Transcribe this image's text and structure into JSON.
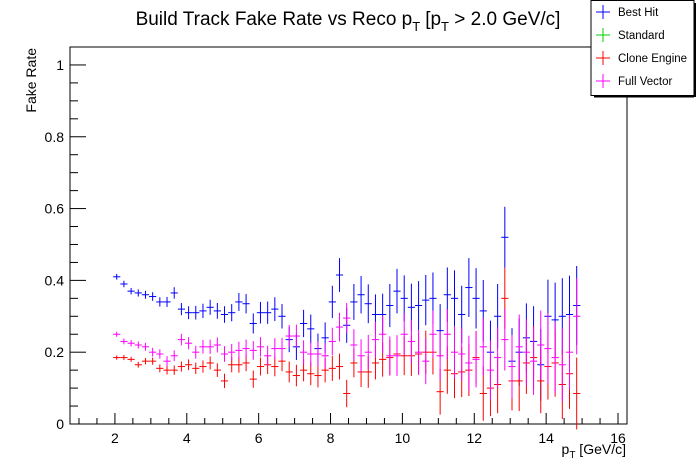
{
  "chart_data": {
    "type": "scatter",
    "title": "Build Track Fake Rate vs Reco p",
    "title_sub": "T",
    "title_bracket_open": "[p",
    "title_bracket_sub": "T",
    "title_tail": " > 2.0 GeV/c]",
    "xlabel": "p",
    "xlabel_sub": "T",
    "xlabel_tail": " [GeV/c]",
    "ylabel": "Fake Rate",
    "xlim": [
      0.75,
      16.25
    ],
    "ylim": [
      0,
      1.05
    ],
    "xticks": [
      2,
      4,
      6,
      8,
      10,
      12,
      14,
      16
    ],
    "xtick_labels": [
      "2",
      "4",
      "6",
      "8",
      "10",
      "12",
      "14",
      "16"
    ],
    "yticks": [
      0,
      0.2,
      0.4,
      0.6,
      0.8,
      1
    ],
    "ytick_labels": [
      "0",
      "0.2",
      "0.4",
      "0.6",
      "0.8",
      "1"
    ],
    "legend_position": "top-right",
    "x": [
      2.05,
      2.25,
      2.45,
      2.65,
      2.85,
      3.05,
      3.25,
      3.45,
      3.65,
      3.85,
      4.05,
      4.25,
      4.45,
      4.65,
      4.85,
      5.05,
      5.25,
      5.45,
      5.65,
      5.85,
      6.05,
      6.25,
      6.45,
      6.65,
      6.85,
      7.05,
      7.25,
      7.45,
      7.65,
      7.85,
      8.05,
      8.25,
      8.45,
      8.65,
      8.85,
      9.05,
      9.25,
      9.45,
      9.65,
      9.85,
      10.05,
      10.25,
      10.45,
      10.65,
      10.85,
      11.05,
      11.25,
      11.45,
      11.65,
      11.85,
      12.05,
      12.25,
      12.45,
      12.65,
      12.85,
      13.05,
      13.25,
      13.45,
      13.65,
      13.85,
      14.05,
      14.25,
      14.45,
      14.65,
      14.85
    ],
    "series": [
      {
        "name": "Best Hit",
        "color": "#0000ff",
        "values": [
          0.41,
          0.39,
          0.37,
          0.365,
          0.36,
          0.355,
          0.34,
          0.34,
          0.365,
          0.32,
          0.31,
          0.31,
          0.315,
          0.325,
          0.315,
          0.305,
          0.31,
          0.34,
          0.335,
          0.28,
          0.31,
          0.31,
          0.32,
          0.3,
          0.235,
          0.215,
          0.28,
          0.265,
          0.21,
          0.24,
          0.34,
          0.415,
          0.275,
          0.34,
          0.36,
          0.335,
          0.305,
          0.305,
          0.33,
          0.37,
          0.35,
          0.325,
          0.33,
          0.345,
          0.35,
          0.26,
          0.36,
          0.35,
          0.305,
          0.38,
          0.35,
          0.315,
          0.2,
          0.3,
          0.52,
          0.175,
          0.2,
          0.24,
          0.23,
          0.165,
          0.3,
          0.29,
          0.3,
          0.305,
          0.33
        ],
        "errors": [
          0.008,
          0.009,
          0.009,
          0.01,
          0.011,
          0.012,
          0.013,
          0.014,
          0.016,
          0.017,
          0.018,
          0.019,
          0.02,
          0.021,
          0.022,
          0.023,
          0.024,
          0.025,
          0.027,
          0.028,
          0.03,
          0.031,
          0.033,
          0.034,
          0.035,
          0.037,
          0.038,
          0.04,
          0.042,
          0.043,
          0.045,
          0.047,
          0.049,
          0.05,
          0.052,
          0.054,
          0.056,
          0.058,
          0.06,
          0.062,
          0.064,
          0.066,
          0.068,
          0.07,
          0.072,
          0.074,
          0.076,
          0.078,
          0.08,
          0.082,
          0.084,
          0.086,
          0.088,
          0.09,
          0.085,
          0.092,
          0.094,
          0.096,
          0.098,
          0.1,
          0.102,
          0.104,
          0.106,
          0.108,
          0.11
        ]
      },
      {
        "name": "Standard",
        "color": "#00cc00",
        "values": [],
        "errors": []
      },
      {
        "name": "Clone Engine",
        "color": "#ff0000",
        "values": [
          0.185,
          0.185,
          0.18,
          0.165,
          0.175,
          0.175,
          0.155,
          0.15,
          0.15,
          0.16,
          0.165,
          0.155,
          0.16,
          0.17,
          0.15,
          0.12,
          0.165,
          0.165,
          0.17,
          0.125,
          0.16,
          0.165,
          0.16,
          0.175,
          0.145,
          0.135,
          0.15,
          0.14,
          0.135,
          0.15,
          0.155,
          0.16,
          0.085,
          0.17,
          0.145,
          0.145,
          0.17,
          0.18,
          0.185,
          0.195,
          0.19,
          0.19,
          0.195,
          0.2,
          0.2,
          0.09,
          0.15,
          0.14,
          0.145,
          0.15,
          0.185,
          0.085,
          0.1,
          0.11,
          0.35,
          0.12,
          0.12,
          0.17,
          0.185,
          0.12,
          0.16,
          0.17,
          0.11,
          0.14,
          0.085
        ],
        "errors": [
          0.006,
          0.007,
          0.007,
          0.008,
          0.009,
          0.01,
          0.011,
          0.012,
          0.013,
          0.014,
          0.015,
          0.016,
          0.017,
          0.018,
          0.019,
          0.02,
          0.021,
          0.022,
          0.023,
          0.024,
          0.025,
          0.026,
          0.027,
          0.028,
          0.029,
          0.03,
          0.031,
          0.032,
          0.033,
          0.034,
          0.035,
          0.036,
          0.038,
          0.04,
          0.042,
          0.044,
          0.046,
          0.048,
          0.05,
          0.052,
          0.054,
          0.056,
          0.058,
          0.06,
          0.062,
          0.064,
          0.066,
          0.068,
          0.07,
          0.072,
          0.074,
          0.076,
          0.078,
          0.08,
          0.085,
          0.082,
          0.084,
          0.086,
          0.088,
          0.09,
          0.092,
          0.094,
          0.096,
          0.098,
          0.1
        ]
      },
      {
        "name": "Full Vector",
        "color": "#ff00ff",
        "values": [
          0.25,
          0.23,
          0.225,
          0.22,
          0.215,
          0.2,
          0.195,
          0.175,
          0.19,
          0.235,
          0.225,
          0.2,
          0.215,
          0.215,
          0.22,
          0.195,
          0.2,
          0.205,
          0.21,
          0.205,
          0.215,
          0.19,
          0.21,
          0.21,
          0.245,
          0.245,
          0.2,
          0.195,
          0.195,
          0.19,
          0.23,
          0.27,
          0.295,
          0.22,
          0.19,
          0.2,
          0.235,
          0.25,
          0.19,
          0.19,
          0.25,
          0.23,
          0.2,
          0.175,
          0.25,
          0.19,
          0.25,
          0.2,
          0.195,
          0.17,
          0.18,
          0.215,
          0.15,
          0.185,
          0.235,
          0.16,
          0.215,
          0.2,
          0.175,
          0.22,
          0.21,
          0.185,
          0.165,
          0.2,
          0.3
        ],
        "errors": [
          0.007,
          0.008,
          0.009,
          0.01,
          0.011,
          0.012,
          0.013,
          0.014,
          0.015,
          0.016,
          0.017,
          0.018,
          0.019,
          0.02,
          0.021,
          0.022,
          0.023,
          0.024,
          0.025,
          0.026,
          0.027,
          0.028,
          0.029,
          0.03,
          0.031,
          0.032,
          0.033,
          0.034,
          0.035,
          0.036,
          0.038,
          0.04,
          0.042,
          0.044,
          0.046,
          0.048,
          0.05,
          0.052,
          0.054,
          0.056,
          0.058,
          0.06,
          0.062,
          0.064,
          0.066,
          0.068,
          0.07,
          0.072,
          0.074,
          0.076,
          0.078,
          0.08,
          0.082,
          0.084,
          0.086,
          0.088,
          0.09,
          0.092,
          0.094,
          0.096,
          0.098,
          0.1,
          0.102,
          0.104,
          0.106
        ]
      }
    ]
  }
}
